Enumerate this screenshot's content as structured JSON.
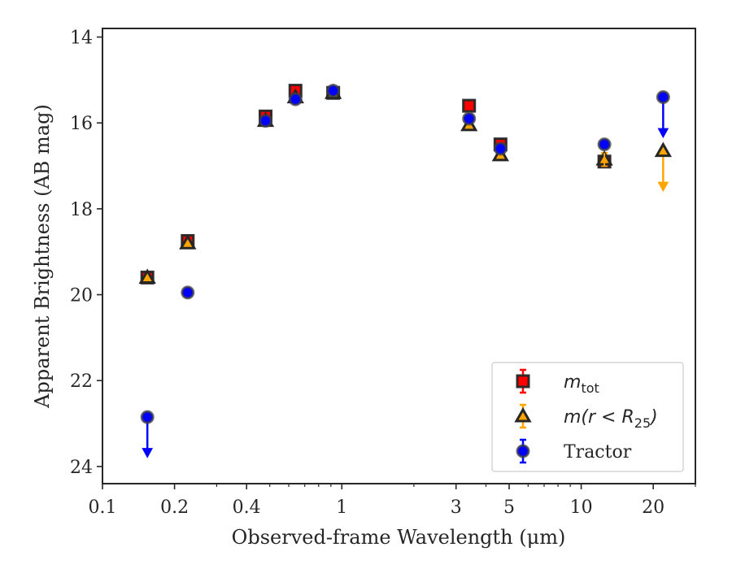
{
  "chart_data": {
    "type": "scatter",
    "xlabel": "Observed-frame Wavelength (μm)",
    "ylabel": "Apparent Brightness (AB mag)",
    "xscale": "log",
    "xlim": [
      0.1,
      30
    ],
    "ylim": [
      24.4,
      13.8
    ],
    "y_inverted": true,
    "grid": false,
    "legend_position": "lower-right",
    "x_ticks": [
      {
        "value": 0.1,
        "label": "0.1"
      },
      {
        "value": 0.2,
        "label": "0.2"
      },
      {
        "value": 0.4,
        "label": "0.4"
      },
      {
        "value": 1,
        "label": "1"
      },
      {
        "value": 3,
        "label": "3"
      },
      {
        "value": 5,
        "label": "5"
      },
      {
        "value": 10,
        "label": "10"
      },
      {
        "value": 20,
        "label": "20"
      }
    ],
    "x_minor_ticks": [
      0.3,
      0.5,
      0.6,
      0.7,
      0.8,
      0.9,
      2,
      4,
      6,
      7,
      8,
      9,
      30
    ],
    "y_ticks": [
      {
        "value": 14,
        "label": "14"
      },
      {
        "value": 16,
        "label": "16"
      },
      {
        "value": 18,
        "label": "18"
      },
      {
        "value": 20,
        "label": "20"
      },
      {
        "value": 22,
        "label": "22"
      },
      {
        "value": 24,
        "label": "24"
      }
    ],
    "series": [
      {
        "name": "m_tot",
        "legend_math": "m",
        "legend_sub": "tot",
        "marker": "square",
        "color": "#ff0000",
        "edge_color": "#262626",
        "errbar_color": "#ff0000",
        "points": [
          {
            "x": 0.154,
            "y": 19.6,
            "err": 0.08
          },
          {
            "x": 0.227,
            "y": 18.75,
            "err": 0.08
          },
          {
            "x": 0.48,
            "y": 15.85,
            "err": 0.05
          },
          {
            "x": 0.64,
            "y": 15.25,
            "err": 0.05
          },
          {
            "x": 0.92,
            "y": 15.3,
            "err": 0.05
          },
          {
            "x": 3.4,
            "y": 15.6,
            "err": 0.05
          },
          {
            "x": 4.6,
            "y": 16.5,
            "err": 0.05
          },
          {
            "x": 12.5,
            "y": 16.9,
            "err": 0.05
          }
        ]
      },
      {
        "name": "m(r<R25)",
        "legend_math": "m(r < R",
        "legend_sub": "25",
        "legend_close": ")",
        "marker": "triangle",
        "color": "#ffa500",
        "edge_color": "#262626",
        "errbar_color": "#ffa500",
        "points": [
          {
            "x": 0.154,
            "y": 19.6,
            "err": 0.06
          },
          {
            "x": 0.227,
            "y": 18.8,
            "err": 0.06
          },
          {
            "x": 0.48,
            "y": 15.95,
            "err": 0.05
          },
          {
            "x": 0.64,
            "y": 15.4,
            "err": 0.05
          },
          {
            "x": 0.92,
            "y": 15.3,
            "err": 0.05
          },
          {
            "x": 3.4,
            "y": 16.05,
            "err": 0.05
          },
          {
            "x": 4.6,
            "y": 16.75,
            "err": 0.05
          },
          {
            "x": 12.5,
            "y": 16.85,
            "err": 0.15
          },
          {
            "x": 22,
            "y": 16.65,
            "upper_limit": true,
            "arrow_to": 17.55
          }
        ]
      },
      {
        "name": "Tractor",
        "marker": "circle",
        "color": "#0000ff",
        "edge_color": "#404040",
        "errbar_color": "#0000ff",
        "points": [
          {
            "x": 0.154,
            "y": 22.85,
            "upper_limit": true,
            "arrow_to": 23.75
          },
          {
            "x": 0.227,
            "y": 19.95,
            "err": 0.05
          },
          {
            "x": 0.48,
            "y": 15.95,
            "err": 0.05
          },
          {
            "x": 0.64,
            "y": 15.45,
            "err": 0.05
          },
          {
            "x": 0.92,
            "y": 15.25,
            "err": 0.05
          },
          {
            "x": 3.4,
            "y": 15.9,
            "err": 0.05
          },
          {
            "x": 4.6,
            "y": 16.6,
            "err": 0.05
          },
          {
            "x": 12.5,
            "y": 16.5,
            "err": 0.05
          },
          {
            "x": 22,
            "y": 15.4,
            "upper_limit": true,
            "arrow_to": 16.3
          }
        ]
      }
    ],
    "legend_entries": [
      {
        "series_index": 0,
        "label": "m_tot"
      },
      {
        "series_index": 1,
        "label": "m(r<R25)"
      },
      {
        "series_index": 2,
        "label": "Tractor"
      }
    ]
  }
}
